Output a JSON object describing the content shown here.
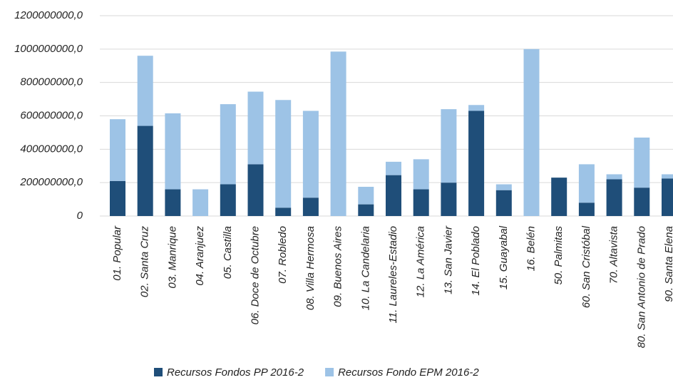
{
  "chart_data": {
    "type": "stacked_bar",
    "categories": [
      "01. Popular",
      "02. Santa Cruz",
      "03. Manrique",
      "04. Aranjuez",
      "05. Castilla",
      "06. Doce de Octubre",
      "07. Robledo",
      "08. Villa Hermosa",
      "09. Buenos Aires",
      "10. La Candelaria",
      "11. Laureles-Estadio",
      "12. La América",
      "13. San Javier",
      "14. El Poblado",
      "15. Guayabal",
      "16. Belén",
      "50. Palmitas",
      "60. San Cristóbal",
      "70. Altavista",
      "80. San Antonio de Prado",
      "90. Santa Elena"
    ],
    "series": [
      {
        "name": "Recursos Fondos PP 2016-2",
        "color": "#1f4e79",
        "values": [
          210000000,
          540000000,
          160000000,
          0,
          190000000,
          310000000,
          50000000,
          110000000,
          0,
          70000000,
          245000000,
          160000000,
          200000000,
          630000000,
          155000000,
          0,
          230000000,
          80000000,
          220000000,
          170000000,
          225000000
        ]
      },
      {
        "name": "Recursos Fondo EPM 2016-2",
        "color": "#9dc3e6",
        "values": [
          370000000,
          420000000,
          455000000,
          160000000,
          480000000,
          435000000,
          645000000,
          520000000,
          985000000,
          105000000,
          80000000,
          180000000,
          440000000,
          35000000,
          35000000,
          1000000000,
          0,
          230000000,
          30000000,
          300000000,
          25000000
        ]
      }
    ],
    "ylim": [
      0,
      1200000000
    ],
    "yticks": [
      0,
      {
        "value": 200000000,
        "label": "200000000,0"
      },
      {
        "value": 400000000,
        "label": "400000000,0"
      },
      {
        "value": 600000000,
        "label": "600000000,0"
      },
      {
        "value": 800000000,
        "label": "800000000,0"
      },
      {
        "value": 1000000000,
        "label": "1000000000,0"
      },
      {
        "value": 1200000000,
        "label": "1200000000,0"
      }
    ],
    "grid": true
  }
}
